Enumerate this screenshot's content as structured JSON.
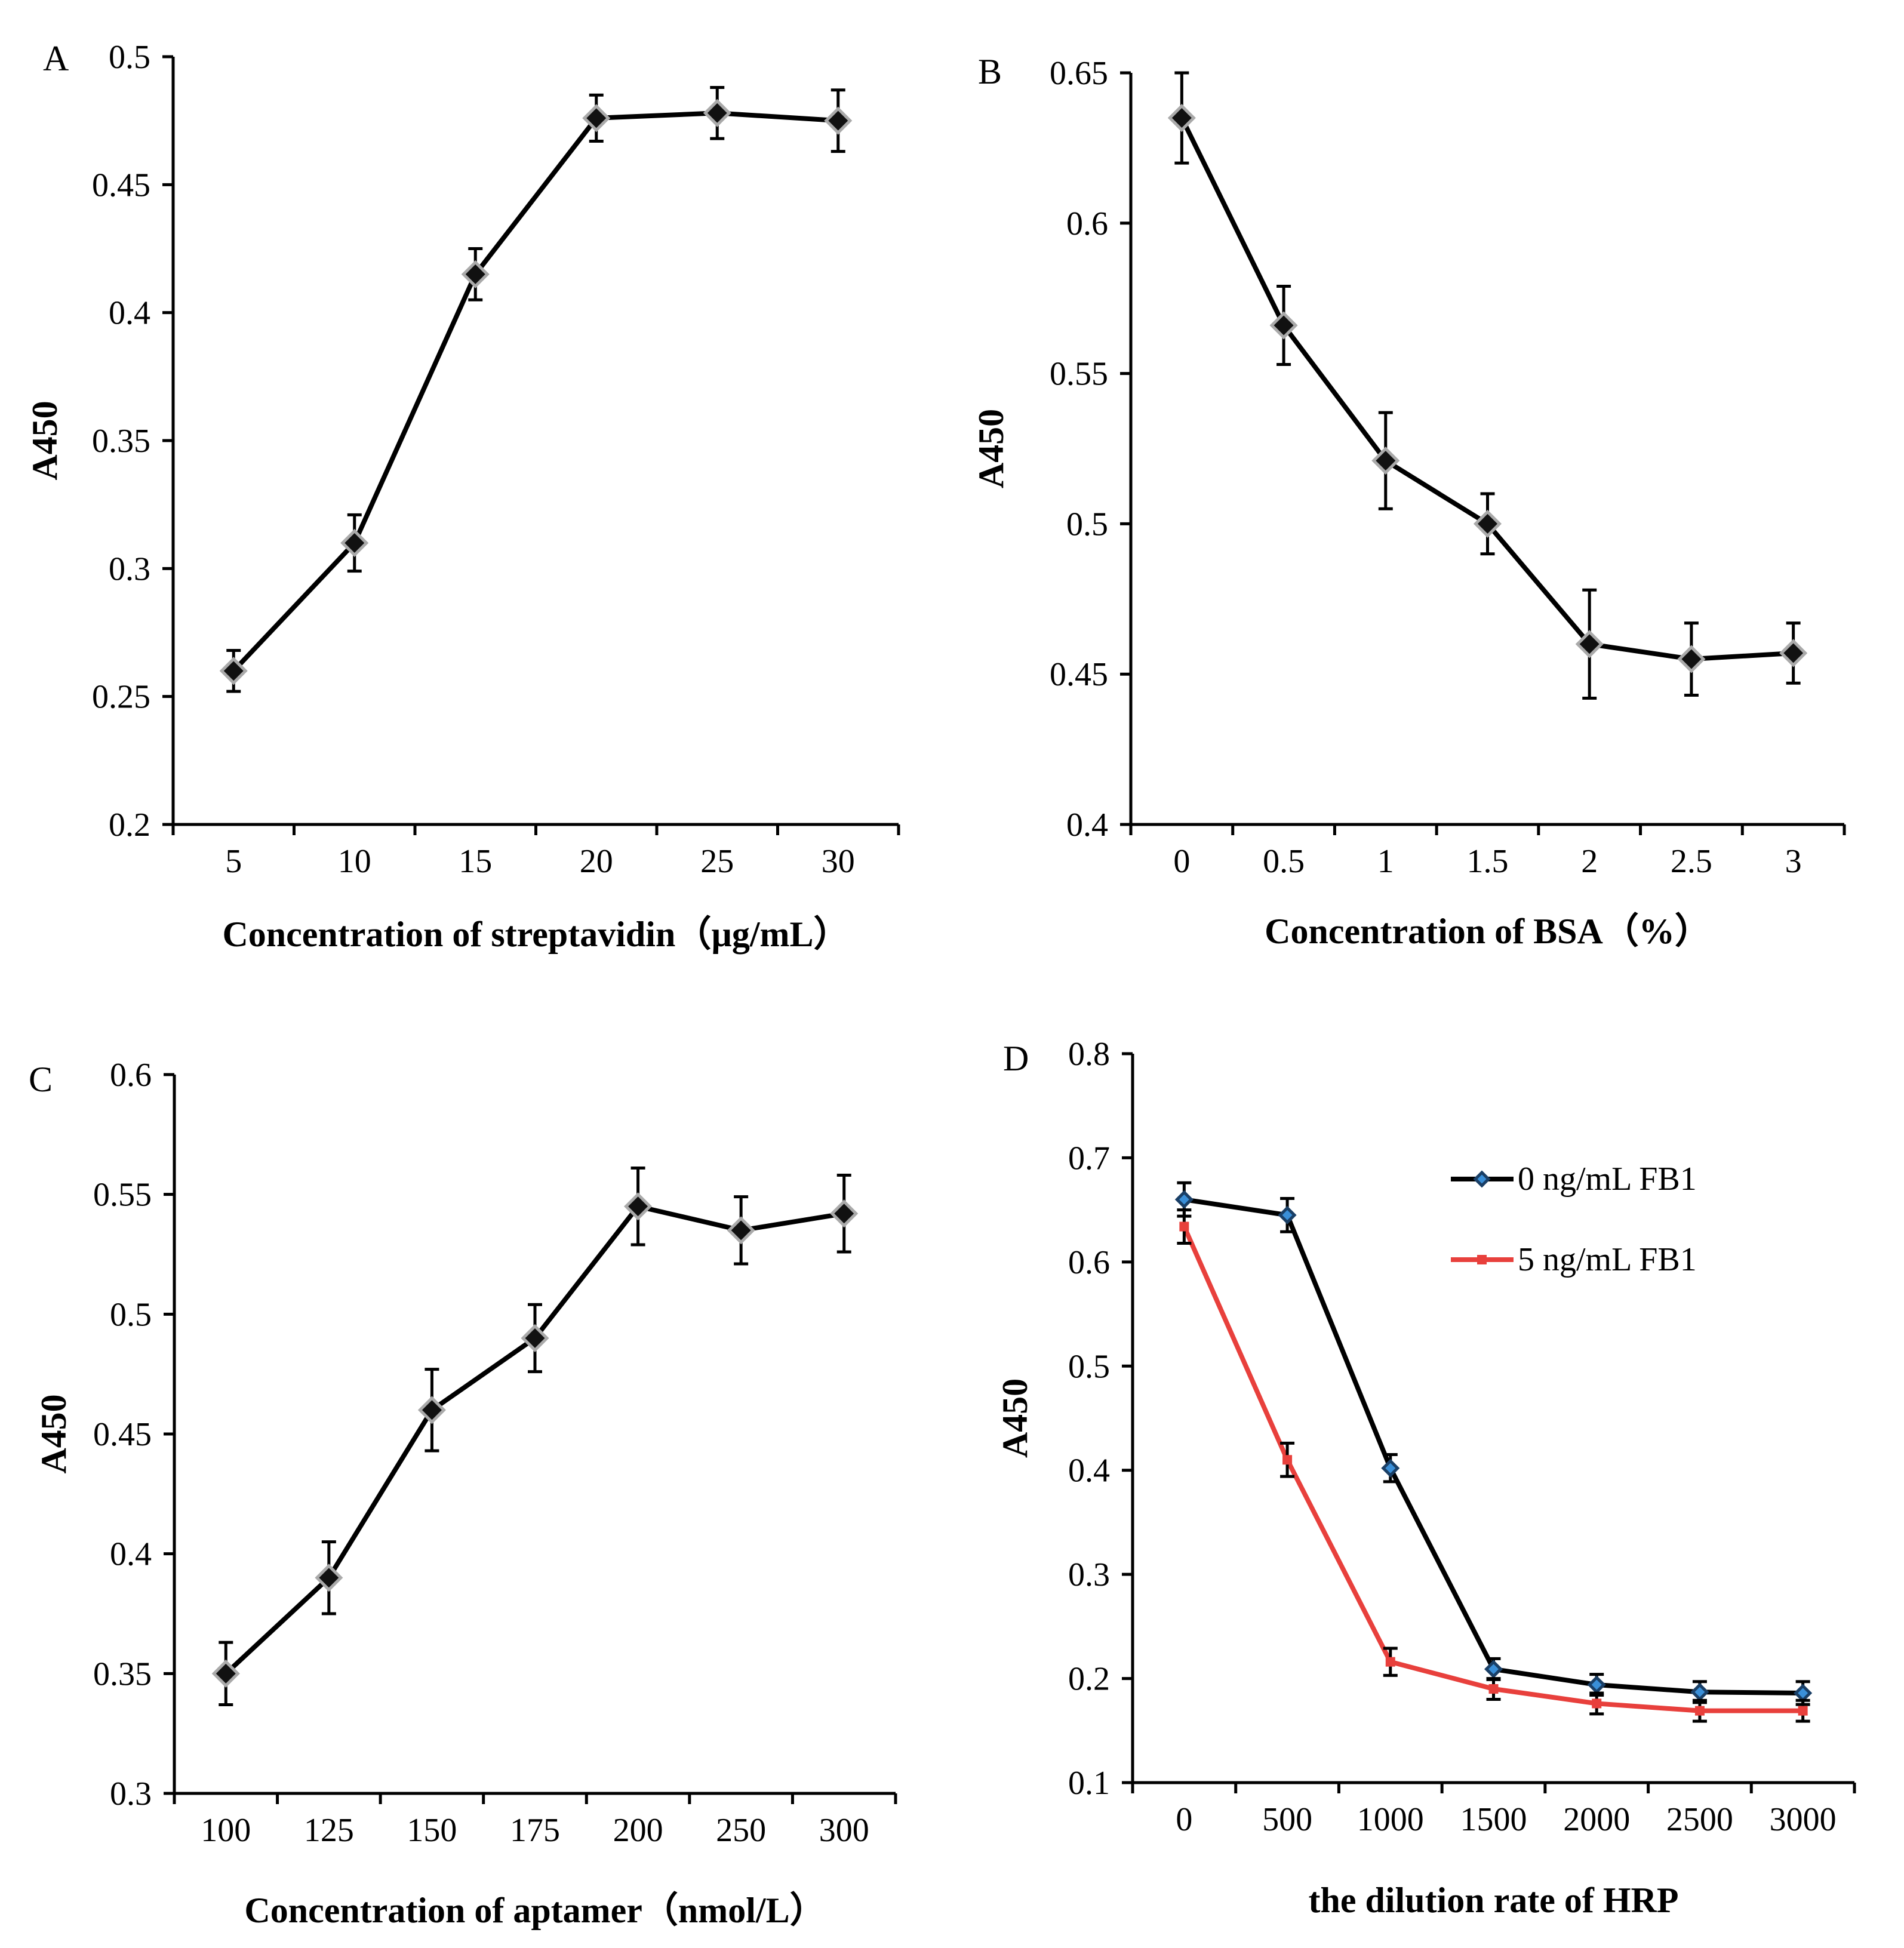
{
  "chart_data": [
    {
      "type": "line",
      "panel_label": "A",
      "categories": [
        "5",
        "10",
        "15",
        "20",
        "25",
        "30"
      ],
      "series": [
        {
          "name": "",
          "color": "#000000",
          "marker": "diamond",
          "values": [
            0.26,
            0.31,
            0.415,
            0.476,
            0.478,
            0.475
          ],
          "errors": [
            0.008,
            0.011,
            0.01,
            0.009,
            0.01,
            0.012
          ]
        }
      ],
      "ylim": [
        0.2,
        0.5
      ],
      "yticks": [
        "0.2",
        "0.25",
        "0.3",
        "0.35",
        "0.4",
        "0.45",
        "0.5"
      ],
      "ytick_values": [
        0.2,
        0.25,
        0.3,
        0.35,
        0.4,
        0.45,
        0.5
      ],
      "xlabel": "Concentration of streptavidin（µg/mL）",
      "ylabel": "A450",
      "grid": false
    },
    {
      "type": "line",
      "panel_label": "B",
      "categories": [
        "0",
        "0.5",
        "1",
        "1.5",
        "2",
        "2.5",
        "3"
      ],
      "series": [
        {
          "name": "",
          "color": "#000000",
          "marker": "diamond",
          "values": [
            0.635,
            0.566,
            0.521,
            0.5,
            0.46,
            0.455,
            0.457
          ],
          "errors": [
            0.015,
            0.013,
            0.016,
            0.01,
            0.018,
            0.012,
            0.01
          ]
        }
      ],
      "ylim": [
        0.4,
        0.65
      ],
      "yticks": [
        "0.4",
        "0.45",
        "0.5",
        "0.55",
        "0.6",
        "0.65"
      ],
      "ytick_values": [
        0.4,
        0.45,
        0.5,
        0.55,
        0.6,
        0.65
      ],
      "xlabel": "Concentration of BSA（%）",
      "ylabel": "A450",
      "grid": false
    },
    {
      "type": "line",
      "panel_label": "C",
      "categories": [
        "100",
        "125",
        "150",
        "175",
        "200",
        "250",
        "300"
      ],
      "series": [
        {
          "name": "",
          "color": "#000000",
          "marker": "diamond",
          "values": [
            0.35,
            0.39,
            0.46,
            0.49,
            0.545,
            0.535,
            0.542
          ],
          "errors": [
            0.013,
            0.015,
            0.017,
            0.014,
            0.016,
            0.014,
            0.016
          ]
        }
      ],
      "ylim": [
        0.3,
        0.6
      ],
      "yticks": [
        "0.3",
        "0.35",
        "0.4",
        "0.45",
        "0.5",
        "0.55",
        "0.6"
      ],
      "ytick_values": [
        0.3,
        0.35,
        0.4,
        0.45,
        0.5,
        0.55,
        0.6
      ],
      "xlabel": "Concentration of aptamer（nmol/L）",
      "ylabel": "A450",
      "grid": false
    },
    {
      "type": "line",
      "panel_label": "D",
      "categories": [
        "0",
        "500",
        "1000",
        "1500",
        "2000",
        "2500",
        "3000"
      ],
      "series": [
        {
          "name": "0 ng/mL FB1",
          "color": "#000000",
          "marker": "diamond-blue",
          "values": [
            0.66,
            0.645,
            0.402,
            0.209,
            0.194,
            0.187,
            0.186
          ],
          "errors": [
            0.016,
            0.016,
            0.013,
            0.01,
            0.01,
            0.01,
            0.011
          ]
        },
        {
          "name": "5 ng/mL FB1",
          "color": "#e8403c",
          "marker": "square",
          "values": [
            0.634,
            0.41,
            0.216,
            0.19,
            0.176,
            0.169,
            0.169
          ],
          "errors": [
            0.016,
            0.016,
            0.013,
            0.01,
            0.01,
            0.01,
            0.01
          ]
        }
      ],
      "ylim": [
        0.1,
        0.8
      ],
      "yticks": [
        "0.1",
        "0.2",
        "0.3",
        "0.4",
        "0.5",
        "0.6",
        "0.7",
        "0.8"
      ],
      "ytick_values": [
        0.1,
        0.2,
        0.3,
        0.4,
        0.5,
        0.6,
        0.7,
        0.8
      ],
      "xlabel": "the dilution rate of HRP",
      "ylabel": "A450",
      "legend_position": "top-right",
      "grid": false
    }
  ]
}
